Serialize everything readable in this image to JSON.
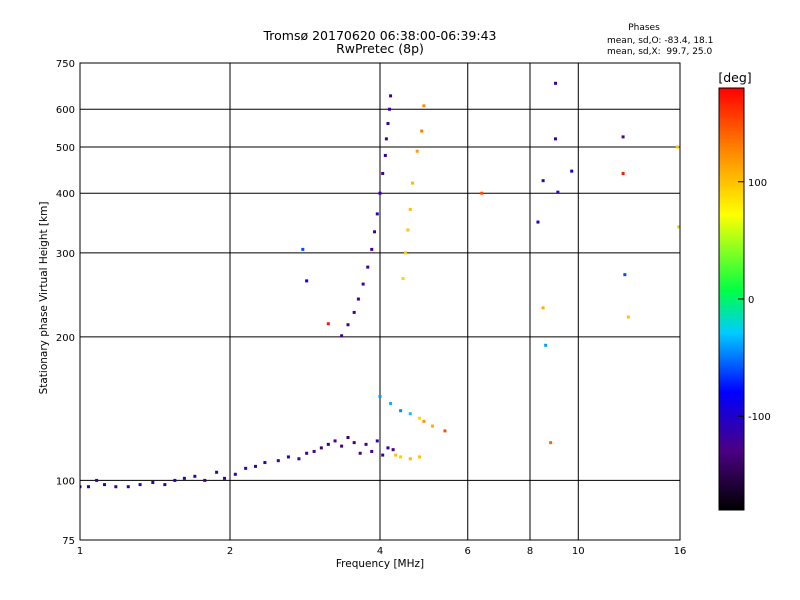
{
  "chart_data": {
    "type": "scatter",
    "title": "Tromsø 20170620 06:38:00-06:39:43",
    "subtitle": "RwPretec (8p)",
    "stats": {
      "heading": "Phases",
      "o_line": "mean, sd,O: -83.4, 18.1",
      "x_line": "mean, sd,X:  99.7, 25.0"
    },
    "xlabel": "Frequency [MHz]",
    "ylabel": "Stationary phase Virtual Height [km]",
    "xscale": "log",
    "yscale": "log",
    "xlim": [
      1,
      16
    ],
    "ylim": [
      75,
      750
    ],
    "xticks": [
      1,
      2,
      4,
      6,
      8,
      10,
      16
    ],
    "xtick_labels": [
      "1",
      "2",
      "4",
      "6",
      "8",
      "10",
      "16"
    ],
    "yticks": [
      75,
      100,
      200,
      300,
      400,
      500,
      600,
      750
    ],
    "ytick_labels": [
      "75",
      "100",
      "200",
      "300",
      "400",
      "500",
      "600",
      "750"
    ],
    "grid": true,
    "colorbar": {
      "label": "[deg]",
      "min": -180,
      "max": 180,
      "ticks": [
        100,
        0,
        -100
      ],
      "tick_labels": [
        "100",
        "0",
        "-100"
      ]
    },
    "series": [
      {
        "points": [
          [
            1.0,
            97,
            -115
          ],
          [
            1.04,
            97,
            -110
          ],
          [
            1.08,
            100,
            -120
          ],
          [
            1.12,
            98,
            -115
          ],
          [
            1.18,
            97,
            -125
          ],
          [
            1.25,
            97,
            -120
          ],
          [
            1.32,
            98,
            -118
          ],
          [
            1.4,
            99,
            -112
          ],
          [
            1.48,
            98,
            -120
          ],
          [
            1.55,
            100,
            -108
          ],
          [
            1.62,
            101,
            -115
          ],
          [
            1.7,
            102,
            -110
          ],
          [
            1.78,
            100,
            -118
          ],
          [
            1.88,
            104,
            -112
          ],
          [
            1.95,
            101,
            -115
          ],
          [
            2.05,
            103,
            -108
          ],
          [
            2.15,
            106,
            -112
          ],
          [
            2.25,
            107,
            -115
          ],
          [
            2.35,
            109,
            -110
          ],
          [
            2.5,
            110,
            -118
          ],
          [
            2.62,
            112,
            -112
          ],
          [
            2.75,
            111,
            -120
          ],
          [
            2.85,
            114,
            -125
          ],
          [
            2.95,
            115,
            -130
          ],
          [
            3.05,
            117,
            -135
          ],
          [
            3.15,
            119,
            -140
          ],
          [
            3.25,
            121,
            -130
          ],
          [
            3.35,
            118,
            -125
          ],
          [
            3.45,
            123,
            -140
          ],
          [
            3.55,
            120,
            -135
          ],
          [
            3.65,
            114,
            -128
          ],
          [
            3.75,
            119,
            -132
          ],
          [
            3.85,
            115,
            -125
          ],
          [
            3.95,
            121,
            -120
          ],
          [
            4.05,
            113,
            -118
          ],
          [
            4.15,
            117,
            -112
          ],
          [
            4.25,
            116,
            -125
          ]
        ]
      },
      {
        "points": [
          [
            3.35,
            201,
            -125
          ],
          [
            3.45,
            212,
            -120
          ],
          [
            3.55,
            225,
            -118
          ],
          [
            3.62,
            240,
            -122
          ],
          [
            3.7,
            258,
            -120
          ],
          [
            3.78,
            280,
            -118
          ],
          [
            3.85,
            305,
            -122
          ],
          [
            3.9,
            332,
            -120
          ],
          [
            3.95,
            362,
            -118
          ],
          [
            4.0,
            400,
            -122
          ],
          [
            4.05,
            440,
            -120
          ],
          [
            4.1,
            480,
            -118
          ],
          [
            4.12,
            520,
            -122
          ],
          [
            4.15,
            560,
            -120
          ],
          [
            4.18,
            600,
            -118
          ],
          [
            4.2,
            640,
            -122
          ]
        ]
      },
      {
        "points": [
          [
            4.45,
            265,
            90
          ],
          [
            4.5,
            300,
            95
          ],
          [
            4.55,
            335,
            100
          ],
          [
            4.6,
            370,
            102
          ],
          [
            4.65,
            420,
            105
          ],
          [
            4.75,
            490,
            115
          ],
          [
            4.85,
            540,
            130
          ],
          [
            4.9,
            610,
            125
          ]
        ]
      },
      {
        "points": [
          [
            4.0,
            150,
            -40
          ],
          [
            4.2,
            145,
            -35
          ],
          [
            4.4,
            140,
            -45
          ],
          [
            4.6,
            138,
            -30
          ],
          [
            4.8,
            135,
            90
          ],
          [
            4.9,
            133,
            120
          ],
          [
            5.1,
            130,
            110
          ],
          [
            5.4,
            127,
            150
          ],
          [
            4.3,
            113,
            100
          ],
          [
            4.4,
            112,
            95
          ],
          [
            4.6,
            111,
            105
          ],
          [
            4.8,
            112,
            100
          ]
        ]
      },
      {
        "points": [
          [
            2.8,
            305,
            -60
          ],
          [
            2.85,
            262,
            -90
          ],
          [
            3.15,
            213,
            175
          ],
          [
            6.4,
            400,
            150
          ],
          [
            8.3,
            348,
            -110
          ],
          [
            8.5,
            425,
            -115
          ],
          [
            8.5,
            230,
            110
          ],
          [
            8.6,
            192,
            -40
          ],
          [
            8.8,
            120,
            140
          ],
          [
            9.0,
            680,
            -120
          ],
          [
            9.0,
            520,
            -118
          ],
          [
            9.1,
            402,
            -112
          ],
          [
            9.7,
            445,
            -90
          ],
          [
            12.3,
            525,
            -130
          ],
          [
            12.3,
            440,
            170
          ],
          [
            12.4,
            270,
            -60
          ],
          [
            12.6,
            220,
            100
          ],
          [
            15.8,
            500,
            100
          ],
          [
            15.9,
            340,
            95
          ]
        ]
      }
    ]
  }
}
